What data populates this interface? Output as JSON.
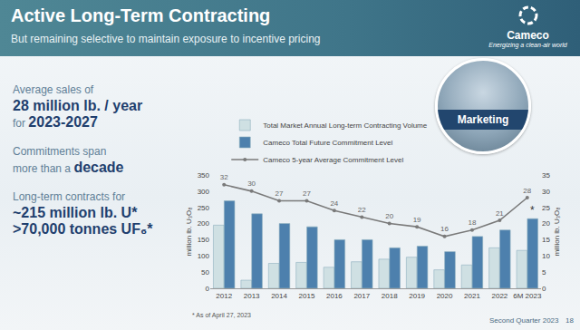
{
  "slide": {
    "title": "Active Long-Term Contracting",
    "subtitle": "But remaining selective to maintain exposure to incentive pricing",
    "logo": {
      "name": "Cameco",
      "tagline": "Energizing a clean-air world"
    },
    "badge": "Marketing",
    "highlights": [
      {
        "intro": "Average sales of",
        "lines": [
          [
            {
              "text": "28 million lb. / year",
              "emph": true
            }
          ],
          [
            {
              "text": "for "
            },
            {
              "text": "2023-2027",
              "emph": true
            }
          ]
        ]
      },
      {
        "intro": "Commitments span",
        "lines": [
          [
            {
              "text": "more than a "
            },
            {
              "text": "decade",
              "emph": true
            }
          ]
        ]
      },
      {
        "intro": "Long-term contracts for",
        "lines": [
          [
            {
              "text": "~215 million lb. U*",
              "emph": true
            }
          ],
          [
            {
              "text": ">70,000 tonnes UF₆*",
              "emph": true
            }
          ]
        ]
      }
    ],
    "footnote": "* As of April 27, 2023",
    "footer": "Second Quarter 2023",
    "page": "18"
  },
  "chart_data": {
    "type": "bar",
    "categories": [
      "2012",
      "2013",
      "2014",
      "2015",
      "2016",
      "2017",
      "2018",
      "2019",
      "2020",
      "2021",
      "2022",
      "6M 2023"
    ],
    "series": [
      {
        "name": "Total Market Annual Long-term Contracting Volume",
        "type": "bar",
        "color": "#cfe0e3",
        "values": [
          195,
          25,
          77,
          80,
          65,
          82,
          90,
          96,
          57,
          72,
          125,
          117
        ]
      },
      {
        "name": "Cameco Total Future Commitment Level",
        "type": "bar",
        "color": "#4d80ad",
        "values": [
          270,
          230,
          200,
          190,
          150,
          150,
          125,
          130,
          113,
          160,
          180,
          215
        ]
      },
      {
        "name": "Cameco 5-year Average Commitment Level",
        "type": "line",
        "axis": "y2",
        "color": "#7a7a7a",
        "marker": "circle",
        "line_style": "solid",
        "data_labels": true,
        "values": [
          32,
          30,
          27,
          27,
          24,
          22,
          20,
          19,
          16,
          18,
          21,
          28
        ]
      }
    ],
    "annotations": [
      {
        "text": "*",
        "category": "6M 2023",
        "series": "Cameco Total Future Commitment Level"
      }
    ],
    "ylabel": "million lb. U₃O₈",
    "y2label": "million lb. U₃O₈",
    "ylim": [
      0,
      350
    ],
    "yticks": [
      0,
      50,
      100,
      150,
      200,
      250,
      300,
      350
    ],
    "y2lim": [
      0,
      35
    ],
    "y2ticks": [
      0,
      5,
      10,
      15,
      20,
      25,
      30,
      35
    ],
    "grid": false,
    "legend": "top"
  }
}
